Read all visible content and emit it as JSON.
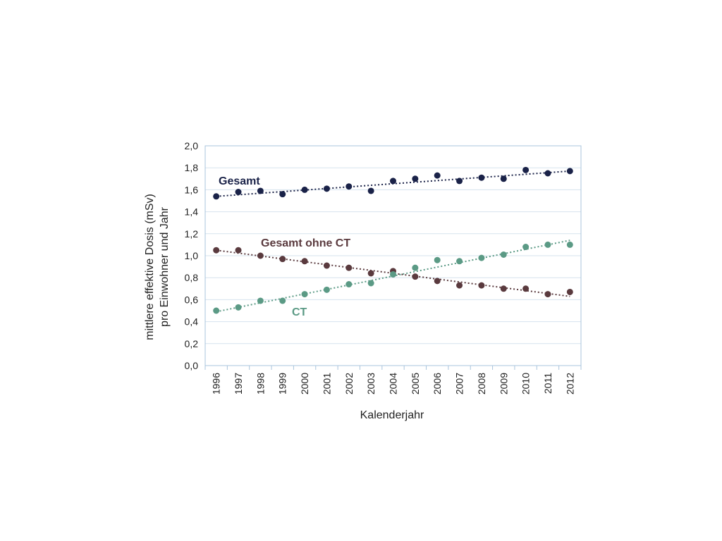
{
  "chart_data": {
    "type": "scatter",
    "title": "",
    "xlabel": "Kalenderjahr",
    "ylabel_lines": [
      "mittlere effektive Dosis (mSv)",
      "pro Einwohner und Jahr"
    ],
    "x": [
      1996,
      1997,
      1998,
      1999,
      2000,
      2001,
      2002,
      2003,
      2004,
      2005,
      2006,
      2007,
      2008,
      2009,
      2010,
      2011,
      2012
    ],
    "x_tick_labels": [
      "1996",
      "1997",
      "1998",
      "1999",
      "2000",
      "2001",
      "2002",
      "2003",
      "2004",
      "2005",
      "2006",
      "2007",
      "2008",
      "2009",
      "2010",
      "2011",
      "2012"
    ],
    "ylim": [
      0,
      2.0
    ],
    "y_ticks": [
      0,
      0.2,
      0.4,
      0.6,
      0.8,
      1.0,
      1.2,
      1.4,
      1.6,
      1.8,
      2.0
    ],
    "y_tick_labels": [
      "0,0",
      "0,2",
      "0,4",
      "0,6",
      "0,8",
      "1,0",
      "1,2",
      "1,4",
      "1,6",
      "1,8",
      "2,0"
    ],
    "grid": true,
    "legend": "none",
    "series": [
      {
        "name": "Gesamt",
        "color": "#1a2248",
        "values": [
          1.54,
          1.58,
          1.59,
          1.56,
          1.6,
          1.61,
          1.63,
          1.59,
          1.68,
          1.7,
          1.73,
          1.68,
          1.71,
          1.7,
          1.78,
          1.75,
          1.77
        ],
        "trend": [
          1.54,
          1.77
        ]
      },
      {
        "name": "Gesamt ohne CT",
        "color": "#5a3a3e",
        "values": [
          1.05,
          1.05,
          1.0,
          0.97,
          0.95,
          0.91,
          0.89,
          0.84,
          0.86,
          0.81,
          0.77,
          0.73,
          0.73,
          0.7,
          0.7,
          0.65,
          0.67
        ],
        "trend": [
          1.05,
          0.63
        ]
      },
      {
        "name": "CT",
        "color": "#5b9a85",
        "values": [
          0.5,
          0.53,
          0.59,
          0.59,
          0.65,
          0.69,
          0.74,
          0.75,
          0.83,
          0.89,
          0.96,
          0.95,
          0.98,
          1.01,
          1.08,
          1.1,
          1.1
        ],
        "trend": [
          0.49,
          1.14
        ]
      }
    ]
  }
}
